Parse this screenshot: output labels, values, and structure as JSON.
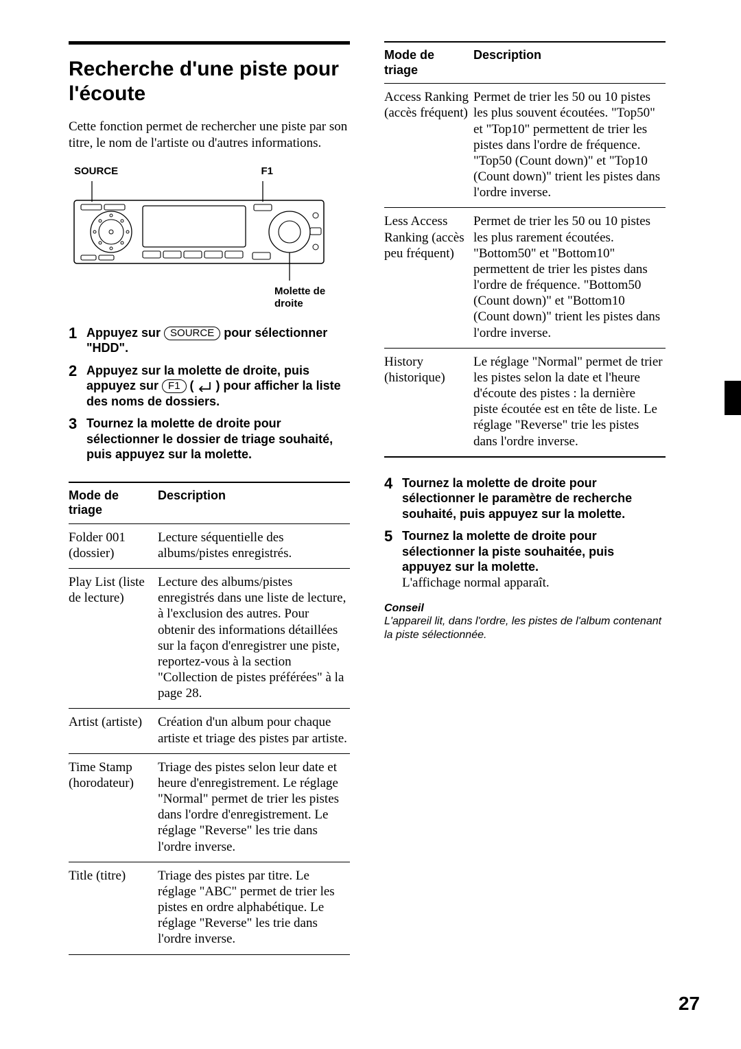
{
  "title": "Recherche d'une piste pour l'écoute",
  "intro": "Cette fonction permet de rechercher une piste par son titre, le nom de l'artiste ou d'autres informations.",
  "labels": {
    "source": "SOURCE",
    "f1": "F1",
    "molette": "Molette de droite",
    "source_pill": "SOURCE",
    "f1_pill": "F1"
  },
  "steps": {
    "s1a": "Appuyez sur ",
    "s1b": " pour sélectionner \"HDD\".",
    "s2a": "Appuyez sur la molette de droite, puis appuyez sur ",
    "s2b": " ( ",
    "s2c": " ) pour afficher la liste des noms de dossiers.",
    "s3": "Tournez la molette de droite pour sélectionner le dossier de triage souhaité, puis appuyez sur la molette.",
    "s4": "Tournez la molette de droite pour sélectionner le paramètre de recherche souhaité, puis appuyez sur la molette.",
    "s5": "Tournez la molette de droite pour sélectionner la piste souhaitée, puis appuyez sur la molette.",
    "s5_after": "L'affichage normal apparaît."
  },
  "table_head": {
    "mode": "Mode de triage",
    "desc": "Description"
  },
  "left_rows": [
    {
      "mode": "Folder 001 (dossier)",
      "desc": "Lecture séquentielle des albums/pistes enregistrés."
    },
    {
      "mode": "Play List (liste de lecture)",
      "desc": "Lecture des albums/pistes enregistrés dans une liste de lecture, à l'exclusion des autres. Pour obtenir des informations détaillées sur la façon d'enregistrer une piste, reportez-vous à la section \"Collection de pistes préférées\" à la page 28."
    },
    {
      "mode": "Artist (artiste)",
      "desc": "Création d'un album pour chaque artiste et triage des pistes par artiste."
    },
    {
      "mode": "Time Stamp (horodateur)",
      "desc": "Triage des pistes selon leur date et heure d'enregistrement. Le réglage \"Normal\" permet de trier les pistes dans l'ordre d'enregistrement. Le réglage \"Reverse\" les trie dans l'ordre inverse."
    },
    {
      "mode": "Title (titre)",
      "desc": "Triage des pistes par titre. Le réglage \"ABC\" permet de trier les pistes en ordre alphabétique. Le réglage \"Reverse\" les trie dans l'ordre inverse."
    }
  ],
  "right_rows": [
    {
      "mode": "Access Ranking (accès fréquent)",
      "desc": "Permet de trier les 50 ou 10 pistes les plus souvent écoutées. \"Top50\" et \"Top10\" permettent de trier les pistes dans l'ordre de fréquence. \"Top50 (Count down)\" et \"Top10 (Count down)\" trient les pistes dans l'ordre inverse."
    },
    {
      "mode": "Less Access Ranking (accès peu fréquent)",
      "desc": "Permet de trier les 50 ou 10 pistes les plus rarement écoutées. \"Bottom50\" et \"Bottom10\" permettent de trier les pistes dans l'ordre de fréquence. \"Bottom50 (Count down)\" et \"Bottom10 (Count down)\" trient les pistes dans l'ordre inverse."
    },
    {
      "mode": "History (historique)",
      "desc": "Le réglage \"Normal\" permet de trier les pistes selon la date et l'heure d'écoute des pistes : la dernière piste écoutée est en tête de liste. Le réglage \"Reverse\" trie les pistes dans l'ordre inverse."
    }
  ],
  "conseil": {
    "head": "Conseil",
    "body": "L'appareil lit, dans l'ordre, les pistes de l'album contenant la piste sélectionnée."
  },
  "page_number": "27",
  "colors": {
    "text": "#000000",
    "bg": "#ffffff"
  }
}
